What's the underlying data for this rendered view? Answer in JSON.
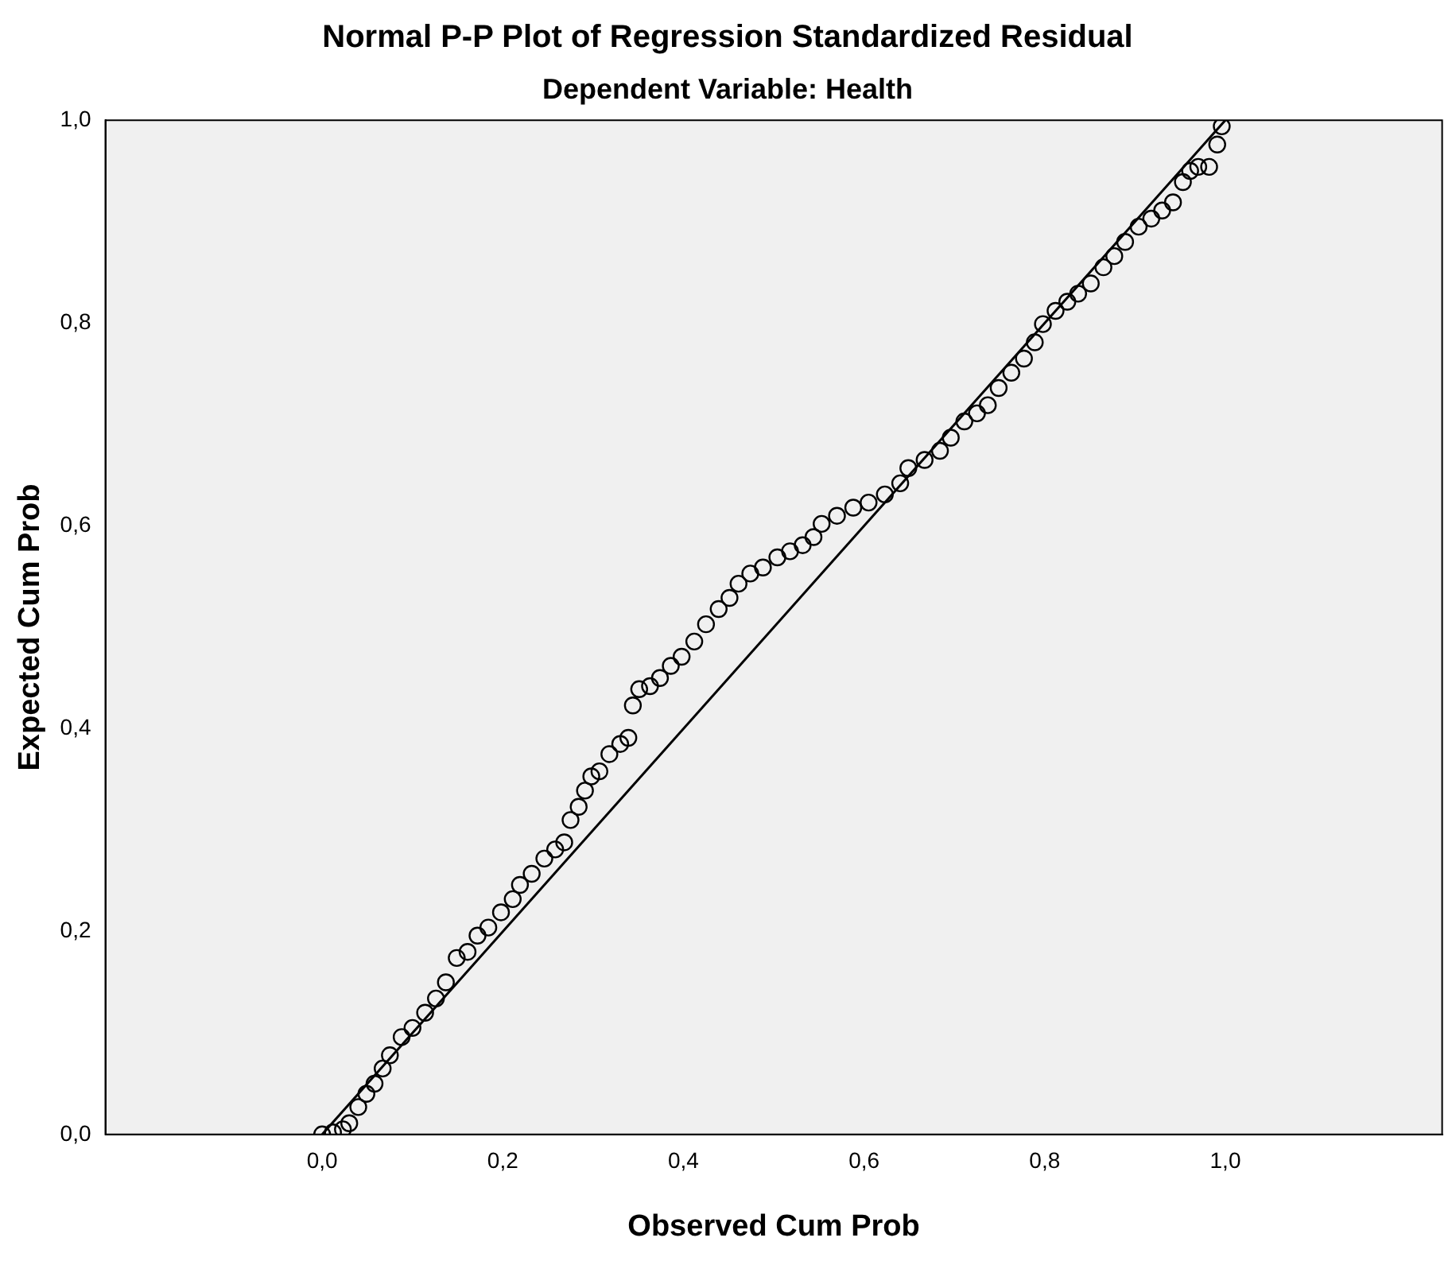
{
  "chart_data": {
    "type": "scatter",
    "title": "Normal P-P Plot of Regression Standardized Residual",
    "subtitle": "Dependent Variable: Health",
    "xlabel": "Observed Cum Prob",
    "ylabel": "Expected Cum Prob",
    "xlim": [
      -0.24,
      1.24
    ],
    "ylim": [
      0,
      1
    ],
    "xticks": [
      {
        "value": 0,
        "label": "0,0"
      },
      {
        "value": 0.2,
        "label": "0,2"
      },
      {
        "value": 0.4,
        "label": "0,4"
      },
      {
        "value": 0.6,
        "label": "0,6"
      },
      {
        "value": 0.8,
        "label": "0,8"
      },
      {
        "value": 1,
        "label": "1,0"
      }
    ],
    "yticks": [
      {
        "value": 0,
        "label": "0,0"
      },
      {
        "value": 0.2,
        "label": "0,2"
      },
      {
        "value": 0.4,
        "label": "0,4"
      },
      {
        "value": 0.6,
        "label": "0,6"
      },
      {
        "value": 0.8,
        "label": "0,8"
      },
      {
        "value": 1,
        "label": "1,0"
      }
    ],
    "grid": false,
    "legend": false,
    "marker": "circle",
    "series": [
      {
        "color": "#000000",
        "x": [
          0,
          0.012,
          0.023,
          0.03,
          0.04,
          0.049,
          0.058,
          0.067,
          0.075,
          0.088,
          0.1,
          0.114,
          0.126,
          0.137,
          0.149,
          0.161,
          0.172,
          0.184,
          0.198,
          0.211,
          0.219,
          0.232,
          0.246,
          0.258,
          0.268,
          0.275,
          0.284,
          0.291,
          0.298,
          0.307,
          0.318,
          0.33,
          0.339,
          0.344,
          0.351,
          0.363,
          0.374,
          0.386,
          0.398,
          0.412,
          0.425,
          0.439,
          0.451,
          0.461,
          0.474,
          0.488,
          0.504,
          0.518,
          0.532,
          0.544,
          0.553,
          0.57,
          0.588,
          0.605,
          0.623,
          0.64,
          0.649,
          0.667,
          0.684,
          0.696,
          0.711,
          0.725,
          0.737,
          0.749,
          0.763,
          0.777,
          0.789,
          0.798,
          0.812,
          0.825,
          0.837,
          0.851,
          0.865,
          0.877,
          0.889,
          0.904,
          0.918,
          0.93,
          0.942,
          0.953,
          0.961,
          0.97,
          0.982,
          0.991,
          0.996
        ],
        "values": [
          0,
          0.002,
          0.005,
          0.011,
          0.027,
          0.04,
          0.05,
          0.065,
          0.078,
          0.096,
          0.105,
          0.12,
          0.134,
          0.15,
          0.174,
          0.18,
          0.196,
          0.204,
          0.219,
          0.232,
          0.246,
          0.257,
          0.272,
          0.281,
          0.288,
          0.31,
          0.323,
          0.339,
          0.353,
          0.358,
          0.375,
          0.385,
          0.391,
          0.423,
          0.439,
          0.442,
          0.45,
          0.462,
          0.471,
          0.486,
          0.503,
          0.518,
          0.529,
          0.543,
          0.553,
          0.559,
          0.569,
          0.575,
          0.581,
          0.589,
          0.602,
          0.61,
          0.618,
          0.623,
          0.631,
          0.642,
          0.657,
          0.665,
          0.674,
          0.687,
          0.703,
          0.711,
          0.719,
          0.736,
          0.751,
          0.765,
          0.781,
          0.799,
          0.812,
          0.821,
          0.829,
          0.839,
          0.855,
          0.866,
          0.88,
          0.895,
          0.903,
          0.911,
          0.919,
          0.939,
          0.95,
          0.954,
          0.954,
          0.976,
          0.994
        ]
      },
      {
        "type": "line",
        "color": "#000000",
        "marker": "none",
        "line_style": "solid",
        "x": [
          0,
          1
        ],
        "values": [
          0,
          1
        ]
      }
    ]
  }
}
